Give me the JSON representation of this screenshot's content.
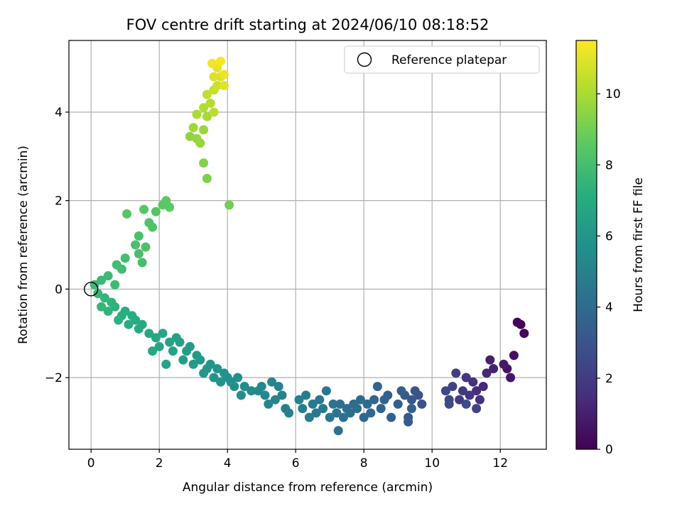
{
  "chart_data": {
    "type": "scatter",
    "title": "FOV centre drift starting at 2024/06/10 08:18:52",
    "xlabel": "Angular distance from reference (arcmin)",
    "ylabel": "Rotation from reference (arcmin)",
    "xlim": [
      -0.65,
      13.35
    ],
    "ylim": [
      -3.62,
      5.62
    ],
    "xticks": [
      0,
      2,
      4,
      6,
      8,
      10,
      12
    ],
    "yticks": [
      -2,
      0,
      2,
      4
    ],
    "grid": true,
    "legend": {
      "placement": "top-right",
      "entries": [
        "Reference platepar"
      ]
    },
    "reference_point": {
      "x": 0,
      "y": 0
    },
    "colorbar": {
      "label": "Hours from first FF file",
      "range": [
        0,
        11.5
      ],
      "ticks": [
        0,
        2,
        4,
        6,
        8,
        10
      ],
      "colormap": "viridis"
    },
    "points": [
      [
        12.7,
        -1.0,
        0.05
      ],
      [
        12.6,
        -0.8,
        0.1
      ],
      [
        12.5,
        -0.75,
        0.15
      ],
      [
        12.4,
        -1.5,
        0.5
      ],
      [
        12.2,
        -1.8,
        0.6
      ],
      [
        12.3,
        -2.0,
        0.7
      ],
      [
        12.1,
        -1.7,
        0.8
      ],
      [
        11.7,
        -1.6,
        1.0
      ],
      [
        11.8,
        -1.8,
        1.1
      ],
      [
        11.6,
        -1.9,
        1.2
      ],
      [
        11.5,
        -2.2,
        1.3
      ],
      [
        11.3,
        -2.3,
        1.4
      ],
      [
        11.4,
        -2.5,
        1.5
      ],
      [
        11.2,
        -2.1,
        1.6
      ],
      [
        11.1,
        -2.4,
        1.7
      ],
      [
        11.0,
        -2.0,
        1.8
      ],
      [
        10.9,
        -2.3,
        1.9
      ],
      [
        10.8,
        -2.5,
        2.0
      ],
      [
        10.7,
        -1.9,
        2.1
      ],
      [
        10.6,
        -2.2,
        2.2
      ],
      [
        11.3,
        -2.7,
        2.3
      ],
      [
        10.5,
        -2.5,
        2.4
      ],
      [
        10.4,
        -2.3,
        2.5
      ],
      [
        10.5,
        -2.6,
        2.6
      ],
      [
        11.0,
        -2.6,
        2.7
      ],
      [
        9.7,
        -2.6,
        2.8
      ],
      [
        9.6,
        -2.4,
        2.9
      ],
      [
        9.5,
        -2.3,
        3.0
      ],
      [
        9.4,
        -2.5,
        3.1
      ],
      [
        9.3,
        -2.9,
        3.2
      ],
      [
        9.2,
        -2.4,
        3.25
      ],
      [
        9.3,
        -3.0,
        3.3
      ],
      [
        9.1,
        -2.3,
        3.35
      ],
      [
        9.0,
        -2.6,
        3.4
      ],
      [
        9.4,
        -2.7,
        3.45
      ],
      [
        8.8,
        -2.9,
        3.5
      ],
      [
        8.7,
        -2.4,
        3.55
      ],
      [
        8.6,
        -2.5,
        3.6
      ],
      [
        8.5,
        -2.7,
        3.65
      ],
      [
        8.4,
        -2.2,
        3.7
      ],
      [
        8.3,
        -2.5,
        3.75
      ],
      [
        8.2,
        -2.8,
        3.8
      ],
      [
        8.1,
        -2.6,
        3.85
      ],
      [
        8.0,
        -2.9,
        3.9
      ],
      [
        7.9,
        -2.5,
        3.95
      ],
      [
        7.8,
        -2.7,
        4.0
      ],
      [
        7.7,
        -2.6,
        4.05
      ],
      [
        7.6,
        -2.8,
        4.1
      ],
      [
        7.5,
        -2.7,
        4.15
      ],
      [
        7.4,
        -2.9,
        4.2
      ],
      [
        7.3,
        -2.6,
        4.25
      ],
      [
        7.25,
        -3.2,
        4.3
      ],
      [
        7.2,
        -2.8,
        4.35
      ],
      [
        7.1,
        -2.6,
        4.4
      ],
      [
        7.0,
        -2.9,
        4.45
      ],
      [
        6.9,
        -2.3,
        4.5
      ],
      [
        6.8,
        -2.7,
        4.55
      ],
      [
        6.7,
        -2.5,
        4.6
      ],
      [
        6.6,
        -2.8,
        4.65
      ],
      [
        6.5,
        -2.6,
        4.7
      ],
      [
        6.4,
        -2.9,
        4.75
      ],
      [
        6.3,
        -2.4,
        4.8
      ],
      [
        6.2,
        -2.7,
        4.85
      ],
      [
        6.1,
        -2.5,
        4.9
      ],
      [
        5.8,
        -2.8,
        4.95
      ],
      [
        5.7,
        -2.7,
        5.0
      ],
      [
        5.6,
        -2.4,
        5.05
      ],
      [
        5.5,
        -2.2,
        5.1
      ],
      [
        5.4,
        -2.5,
        5.15
      ],
      [
        5.3,
        -2.1,
        5.2
      ],
      [
        5.2,
        -2.6,
        5.25
      ],
      [
        5.1,
        -2.4,
        5.3
      ],
      [
        5.0,
        -2.2,
        5.35
      ],
      [
        4.9,
        -2.3,
        5.4
      ],
      [
        4.7,
        -2.3,
        5.45
      ],
      [
        4.5,
        -2.2,
        5.5
      ],
      [
        4.4,
        -2.4,
        5.55
      ],
      [
        4.3,
        -2.0,
        5.6
      ],
      [
        4.2,
        -2.2,
        5.65
      ],
      [
        4.1,
        -2.1,
        5.7
      ],
      [
        4.0,
        -2.0,
        5.75
      ],
      [
        3.9,
        -1.9,
        5.8
      ],
      [
        3.8,
        -2.1,
        5.85
      ],
      [
        3.7,
        -1.8,
        5.9
      ],
      [
        3.6,
        -2.0,
        5.95
      ],
      [
        3.5,
        -1.7,
        6.0
      ],
      [
        3.4,
        -1.8,
        6.05
      ],
      [
        3.3,
        -1.9,
        6.1
      ],
      [
        3.2,
        -1.6,
        6.15
      ],
      [
        3.1,
        -1.5,
        6.2
      ],
      [
        3.0,
        -1.7,
        6.25
      ],
      [
        2.9,
        -1.3,
        6.3
      ],
      [
        2.8,
        -1.4,
        6.35
      ],
      [
        2.7,
        -1.6,
        6.4
      ],
      [
        2.6,
        -1.2,
        6.45
      ],
      [
        2.5,
        -1.1,
        6.5
      ],
      [
        2.4,
        -1.4,
        6.55
      ],
      [
        2.3,
        -1.2,
        6.6
      ],
      [
        2.2,
        -1.7,
        6.65
      ],
      [
        2.1,
        -1.0,
        6.7
      ],
      [
        2.0,
        -1.3,
        6.75
      ],
      [
        1.9,
        -1.1,
        6.8
      ],
      [
        1.8,
        -1.4,
        6.85
      ],
      [
        1.7,
        -1.0,
        6.9
      ],
      [
        1.5,
        -0.8,
        6.95
      ],
      [
        1.4,
        -0.9,
        7.0
      ],
      [
        1.3,
        -0.7,
        7.05
      ],
      [
        1.2,
        -0.6,
        7.1
      ],
      [
        1.1,
        -0.8,
        7.15
      ],
      [
        1.0,
        -0.5,
        7.2
      ],
      [
        0.9,
        -0.6,
        7.25
      ],
      [
        0.8,
        -0.7,
        7.3
      ],
      [
        0.7,
        -0.4,
        7.35
      ],
      [
        0.6,
        -0.3,
        7.4
      ],
      [
        0.5,
        -0.5,
        7.45
      ],
      [
        0.4,
        -0.2,
        7.5
      ],
      [
        0.3,
        -0.4,
        7.55
      ],
      [
        0.2,
        -0.1,
        7.6
      ],
      [
        0.1,
        0.1,
        7.65
      ],
      [
        0.3,
        0.2,
        7.7
      ],
      [
        0.5,
        0.3,
        7.75
      ],
      [
        0.7,
        0.1,
        7.8
      ],
      [
        0.9,
        0.45,
        7.85
      ],
      [
        0.75,
        0.55,
        7.9
      ],
      [
        1.0,
        0.7,
        7.95
      ],
      [
        1.5,
        0.6,
        8.0
      ],
      [
        1.4,
        0.8,
        8.05
      ],
      [
        1.3,
        1.0,
        8.1
      ],
      [
        1.4,
        1.2,
        8.15
      ],
      [
        1.6,
        0.95,
        8.2
      ],
      [
        1.7,
        1.5,
        8.25
      ],
      [
        1.8,
        1.4,
        8.3
      ],
      [
        1.9,
        1.75,
        8.35
      ],
      [
        1.05,
        1.7,
        8.4
      ],
      [
        1.55,
        1.8,
        8.45
      ],
      [
        2.1,
        1.9,
        8.5
      ],
      [
        2.2,
        2.0,
        8.55
      ],
      [
        2.3,
        1.85,
        8.6
      ],
      [
        4.05,
        1.9,
        9.0
      ],
      [
        3.4,
        2.5,
        9.2
      ],
      [
        3.3,
        2.85,
        9.3
      ],
      [
        2.9,
        3.45,
        9.5
      ],
      [
        3.1,
        3.4,
        9.6
      ],
      [
        3.2,
        3.3,
        9.65
      ],
      [
        3.3,
        3.6,
        9.7
      ],
      [
        3.0,
        3.65,
        9.8
      ],
      [
        3.4,
        3.9,
        9.9
      ],
      [
        3.1,
        3.95,
        10.0
      ],
      [
        3.3,
        4.1,
        10.1
      ],
      [
        3.5,
        4.2,
        10.2
      ],
      [
        3.6,
        4.0,
        10.3
      ],
      [
        3.4,
        4.4,
        10.4
      ],
      [
        3.6,
        4.5,
        10.5
      ],
      [
        3.7,
        4.6,
        10.6
      ],
      [
        3.8,
        4.8,
        10.8
      ],
      [
        3.6,
        4.8,
        10.9
      ],
      [
        3.9,
        4.6,
        11.0
      ],
      [
        3.7,
        5.0,
        11.1
      ],
      [
        3.9,
        4.85,
        11.2
      ],
      [
        3.55,
        5.1,
        11.3
      ],
      [
        3.8,
        5.15,
        11.4
      ]
    ]
  }
}
